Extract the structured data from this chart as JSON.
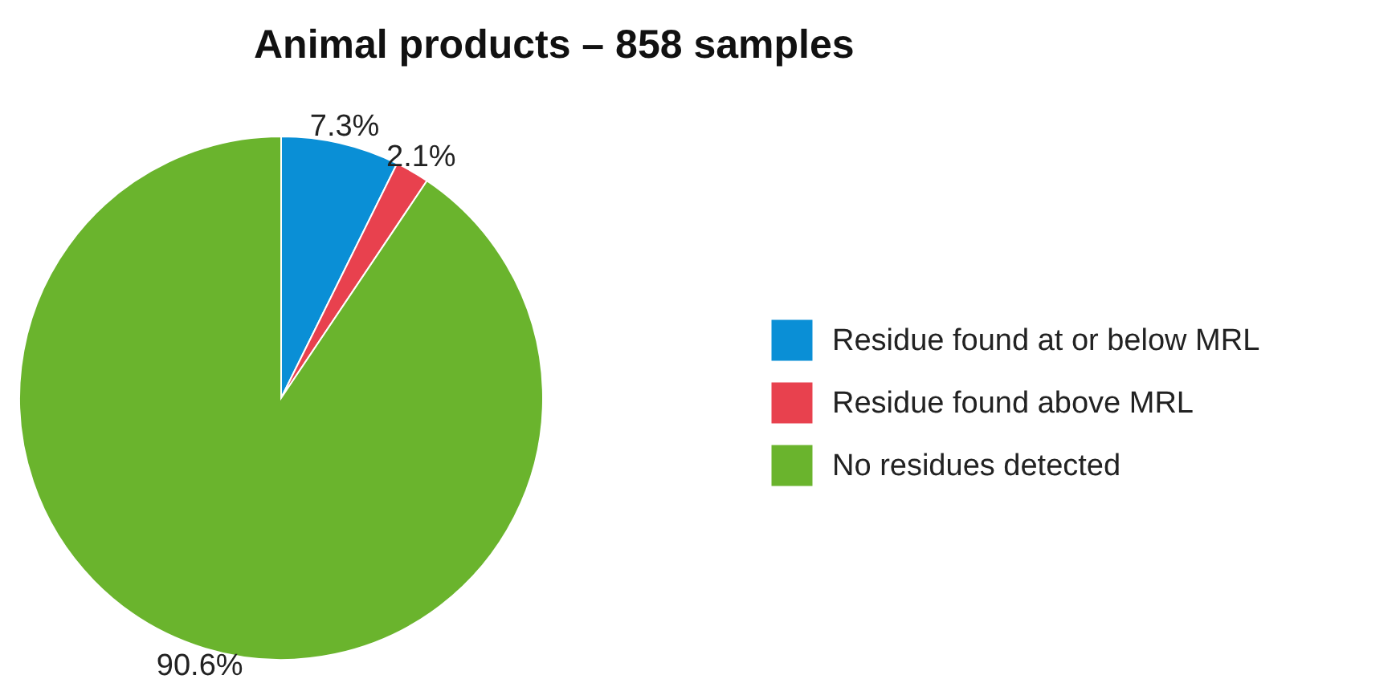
{
  "chart_data": {
    "type": "pie",
    "title": "Animal products – 858 samples",
    "categories": [
      "Residue found at or below MRL",
      "Residue found above MRL",
      "No residues detected"
    ],
    "values": [
      7.3,
      2.1,
      90.6
    ],
    "colors": [
      "#0a8fd6",
      "#e8414e",
      "#6ab42d"
    ],
    "value_labels": [
      "7.3%",
      "2.1%",
      "90.6%"
    ],
    "legend": "right"
  }
}
